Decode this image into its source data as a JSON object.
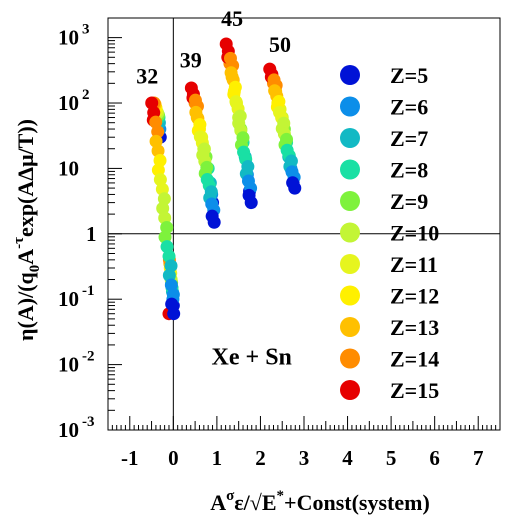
{
  "chart_data": {
    "type": "scatter",
    "title": "",
    "xlabel_parts": {
      "base": "A",
      "sup1": "σ",
      "mid": "ε/√E",
      "sup2": "*",
      "tail": "+Const(system)"
    },
    "ylabel_parts": {
      "a": "η(A)/(q",
      "sub": "0",
      "b": "A",
      "sup": "-τ",
      "c": "exp(AΔμ/T))"
    },
    "xlim": [
      -1.5,
      7.5
    ],
    "ylim_log10": [
      -3,
      3.3
    ],
    "log_y": true,
    "x_ticks": [
      {
        "v": -1,
        "t": "-1"
      },
      {
        "v": 0,
        "t": "0"
      },
      {
        "v": 1,
        "t": "1"
      },
      {
        "v": 2,
        "t": "2"
      },
      {
        "v": 3,
        "t": "3"
      },
      {
        "v": 4,
        "t": "4"
      },
      {
        "v": 5,
        "t": "5"
      },
      {
        "v": 6,
        "t": "6"
      },
      {
        "v": 7,
        "t": "7"
      }
    ],
    "y_ticks": [
      {
        "p": 3,
        "base": "10",
        "exp": "3"
      },
      {
        "p": 2,
        "base": "10",
        "exp": "2"
      },
      {
        "p": 1,
        "base": "10",
        "exp": ""
      },
      {
        "p": 0,
        "base": "1",
        "exp": ""
      },
      {
        "p": -1,
        "base": "10",
        "exp": "-1"
      },
      {
        "p": -2,
        "base": "10",
        "exp": "-2"
      },
      {
        "p": -3,
        "base": "10",
        "exp": "-3"
      }
    ],
    "reference_lines": {
      "x": 0,
      "y": 1
    },
    "annotations": [
      {
        "text": "Xe + Sn",
        "x": 1.8,
        "y": 0.01
      },
      {
        "text": "32",
        "x": -0.6,
        "y": 200
      },
      {
        "text": "39",
        "x": 0.4,
        "y": 350
      },
      {
        "text": "45",
        "x": 1.35,
        "y": 1500
      },
      {
        "text": "50",
        "x": 2.45,
        "y": 600
      }
    ],
    "legend_position": "right",
    "series": [
      {
        "name": "Z=5",
        "color": "#0012d6",
        "points": [
          [
            -0.3,
            30
          ],
          [
            0.0,
            0.08
          ],
          [
            0.9,
            3.0
          ],
          [
            1.75,
            4.5
          ],
          [
            2.75,
            6.0
          ]
        ]
      },
      {
        "name": "Z=6",
        "color": "#0c8ee9",
        "points": [
          [
            -0.31,
            40
          ],
          [
            -0.01,
            0.1
          ],
          [
            0.88,
            4.0
          ],
          [
            1.7,
            8.0
          ],
          [
            2.7,
            10
          ]
        ]
      },
      {
        "name": "Z=7",
        "color": "#12b9c4",
        "points": [
          [
            -0.32,
            50
          ],
          [
            -0.02,
            0.13
          ],
          [
            0.85,
            6.0
          ],
          [
            1.65,
            15
          ],
          [
            2.65,
            15
          ]
        ]
      },
      {
        "name": "Z=8",
        "color": "#19e0a4",
        "points": [
          [
            -0.33,
            60
          ],
          [
            -0.03,
            0.15
          ],
          [
            0.8,
            10
          ],
          [
            1.6,
            25
          ],
          [
            2.6,
            25
          ]
        ]
      },
      {
        "name": "Z=9",
        "color": "#7ef23c",
        "points": [
          [
            -0.34,
            65
          ],
          [
            -0.04,
            0.18
          ],
          [
            0.75,
            15
          ],
          [
            1.55,
            40
          ],
          [
            2.55,
            40
          ]
        ]
      },
      {
        "name": "Z=10",
        "color": "#c3f535",
        "points": [
          [
            -0.36,
            70
          ],
          [
            -0.05,
            0.2
          ],
          [
            0.7,
            20
          ],
          [
            1.5,
            60
          ],
          [
            2.5,
            60
          ]
        ]
      },
      {
        "name": "Z=11",
        "color": "#e6f51e",
        "points": [
          [
            -0.38,
            75
          ],
          [
            -0.06,
            0.25
          ],
          [
            0.65,
            30
          ],
          [
            1.45,
            100
          ],
          [
            2.45,
            80
          ]
        ]
      },
      {
        "name": "Z=12",
        "color": "#fff000",
        "points": [
          [
            -0.4,
            85
          ],
          [
            -0.07,
            0.3
          ],
          [
            0.6,
            40
          ],
          [
            1.4,
            150
          ],
          [
            2.4,
            100
          ]
        ]
      },
      {
        "name": "Z=13",
        "color": "#ffc000",
        "points": [
          [
            -0.42,
            95
          ],
          [
            -0.08,
            0.35
          ],
          [
            0.55,
            60
          ],
          [
            1.35,
            250
          ],
          [
            2.35,
            150
          ]
        ]
      },
      {
        "name": "Z=14",
        "color": "#ff8c00",
        "points": [
          [
            -0.44,
            100
          ],
          [
            -0.09,
            0.4
          ],
          [
            0.5,
            100
          ],
          [
            1.3,
            400
          ],
          [
            2.3,
            200
          ]
        ]
      },
      {
        "name": "Z=15",
        "color": "#e60000",
        "points": [
          [
            -0.46,
            55
          ],
          [
            -0.1,
            0.06
          ],
          [
            0.45,
            120
          ],
          [
            1.25,
            500
          ],
          [
            2.25,
            250
          ]
        ]
      }
    ]
  }
}
